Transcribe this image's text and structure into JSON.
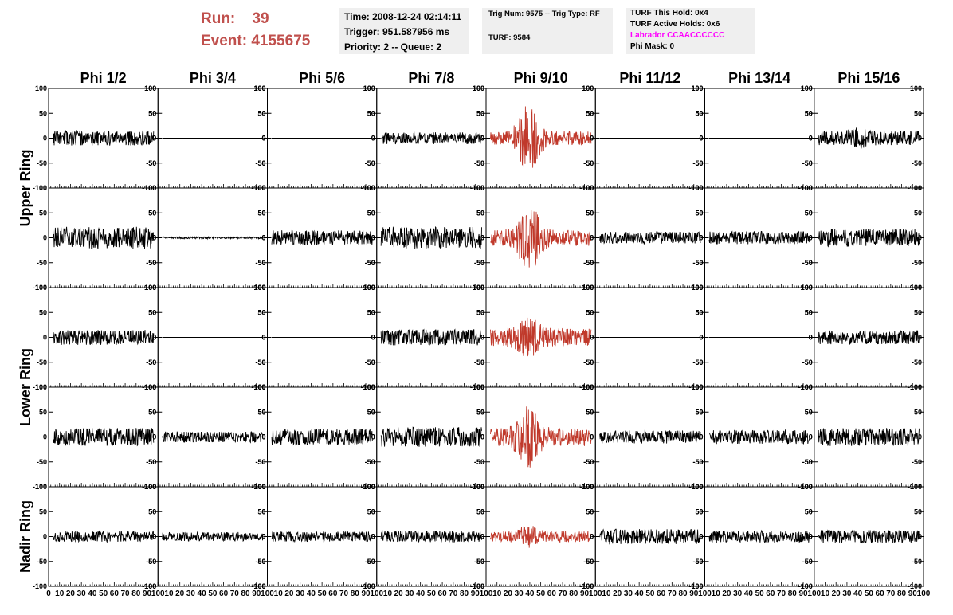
{
  "header": {
    "run_label": "Run:",
    "run_value": "39",
    "event_label": "Event:",
    "event_value": "4155675"
  },
  "info_time": {
    "time": "Time: 2008-12-24 02:14:11",
    "trigger": "Trigger: 951.587956 ms",
    "priority": "Priority: 2 -- Queue: 2"
  },
  "info_trig": {
    "trig": "Trig Num: 9575 -- Trig Type: RF",
    "turf": "TURF: 9584"
  },
  "info_turf": {
    "this_hold": "TURF This Hold: 0x4",
    "active_holds": "TURF Active Holds: 0x6",
    "labrador": "Labrador CCAACCCCCC",
    "phi_mask": "Phi Mask: 0"
  },
  "colors": {
    "triggered": "#c0392b",
    "normal": "#000000",
    "title": "#c0504d",
    "labrador": "#ff00ff"
  },
  "chart_data": {
    "type": "line",
    "columns": [
      "Phi 1/2",
      "Phi 3/4",
      "Phi 5/6",
      "Phi 7/8",
      "Phi 9/10",
      "Phi 11/12",
      "Phi 13/14",
      "Phi 15/16"
    ],
    "rings": [
      {
        "name": "Upper Ring",
        "rows": 2
      },
      {
        "name": "Lower Ring",
        "rows": 2
      },
      {
        "name": "Nadir Ring",
        "rows": 1
      }
    ],
    "ylim": [
      -100,
      100
    ],
    "xlim": [
      0,
      100
    ],
    "yticks": [
      "100",
      "50",
      "0",
      "-50",
      "-100"
    ],
    "xticks": [
      "0",
      "10",
      "20",
      "30",
      "40",
      "50",
      "60",
      "70",
      "80",
      "90",
      "100"
    ],
    "triggered_column": "Phi 9/10",
    "panels": [
      {
        "row": 0,
        "col": 0,
        "amp": 15,
        "seed": 11,
        "burst": 0
      },
      {
        "row": 0,
        "col": 1,
        "amp": 0,
        "seed": 12,
        "burst": 0
      },
      {
        "row": 0,
        "col": 2,
        "amp": 0,
        "seed": 13,
        "burst": 0
      },
      {
        "row": 0,
        "col": 3,
        "amp": 12,
        "seed": 14,
        "burst": 0
      },
      {
        "row": 0,
        "col": 4,
        "amp": 14,
        "seed": 15,
        "burst": 55
      },
      {
        "row": 0,
        "col": 5,
        "amp": 0,
        "seed": 16,
        "burst": 0
      },
      {
        "row": 0,
        "col": 6,
        "amp": 0,
        "seed": 17,
        "burst": 0
      },
      {
        "row": 0,
        "col": 7,
        "amp": 14,
        "seed": 18,
        "burst": 8
      },
      {
        "row": 1,
        "col": 0,
        "amp": 22,
        "seed": 21,
        "burst": 0
      },
      {
        "row": 1,
        "col": 1,
        "amp": 2,
        "seed": 22,
        "burst": 0
      },
      {
        "row": 1,
        "col": 2,
        "amp": 15,
        "seed": 23,
        "burst": 0
      },
      {
        "row": 1,
        "col": 3,
        "amp": 22,
        "seed": 24,
        "burst": 0
      },
      {
        "row": 1,
        "col": 4,
        "amp": 16,
        "seed": 25,
        "burst": 55
      },
      {
        "row": 1,
        "col": 5,
        "amp": 12,
        "seed": 26,
        "burst": 0
      },
      {
        "row": 1,
        "col": 6,
        "amp": 13,
        "seed": 27,
        "burst": 0
      },
      {
        "row": 1,
        "col": 7,
        "amp": 18,
        "seed": 28,
        "burst": 0
      },
      {
        "row": 2,
        "col": 0,
        "amp": 15,
        "seed": 31,
        "burst": 0
      },
      {
        "row": 2,
        "col": 1,
        "amp": 0,
        "seed": 32,
        "burst": 0
      },
      {
        "row": 2,
        "col": 2,
        "amp": 0,
        "seed": 33,
        "burst": 0
      },
      {
        "row": 2,
        "col": 3,
        "amp": 16,
        "seed": 34,
        "burst": 0
      },
      {
        "row": 2,
        "col": 4,
        "amp": 18,
        "seed": 35,
        "burst": 25
      },
      {
        "row": 2,
        "col": 5,
        "amp": 0,
        "seed": 36,
        "burst": 0
      },
      {
        "row": 2,
        "col": 6,
        "amp": 0,
        "seed": 37,
        "burst": 0
      },
      {
        "row": 2,
        "col": 7,
        "amp": 14,
        "seed": 38,
        "burst": 0
      },
      {
        "row": 3,
        "col": 0,
        "amp": 18,
        "seed": 41,
        "burst": 0
      },
      {
        "row": 3,
        "col": 1,
        "amp": 11,
        "seed": 42,
        "burst": 0
      },
      {
        "row": 3,
        "col": 2,
        "amp": 17,
        "seed": 43,
        "burst": 0
      },
      {
        "row": 3,
        "col": 3,
        "amp": 20,
        "seed": 44,
        "burst": 0
      },
      {
        "row": 3,
        "col": 4,
        "amp": 18,
        "seed": 45,
        "burst": 45
      },
      {
        "row": 3,
        "col": 5,
        "amp": 13,
        "seed": 46,
        "burst": 0
      },
      {
        "row": 3,
        "col": 6,
        "amp": 14,
        "seed": 47,
        "burst": 0
      },
      {
        "row": 3,
        "col": 7,
        "amp": 18,
        "seed": 48,
        "burst": 0
      },
      {
        "row": 4,
        "col": 0,
        "amp": 11,
        "seed": 51,
        "burst": 0
      },
      {
        "row": 4,
        "col": 1,
        "amp": 9,
        "seed": 52,
        "burst": 0
      },
      {
        "row": 4,
        "col": 2,
        "amp": 10,
        "seed": 53,
        "burst": 0
      },
      {
        "row": 4,
        "col": 3,
        "amp": 12,
        "seed": 54,
        "burst": 0
      },
      {
        "row": 4,
        "col": 4,
        "amp": 11,
        "seed": 55,
        "burst": 12
      },
      {
        "row": 4,
        "col": 5,
        "amp": 15,
        "seed": 56,
        "burst": 0
      },
      {
        "row": 4,
        "col": 6,
        "amp": 12,
        "seed": 57,
        "burst": 0
      },
      {
        "row": 4,
        "col": 7,
        "amp": 13,
        "seed": 58,
        "burst": 0
      }
    ]
  }
}
